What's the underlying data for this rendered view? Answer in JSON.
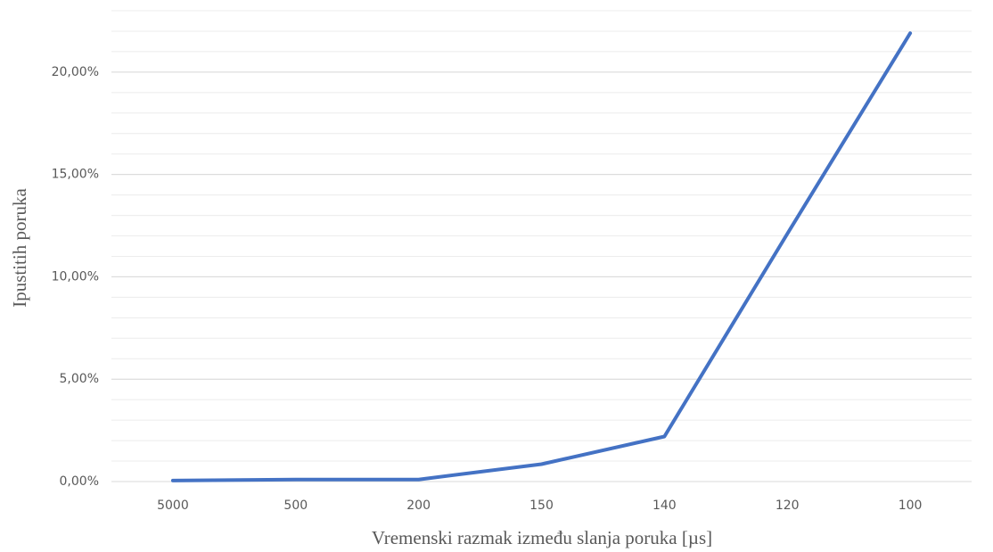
{
  "chart_data": {
    "type": "line",
    "x_label": "Vremenski razmak između slanja poruka [µs]",
    "y_label": "Ipustitih poruka",
    "categories": [
      "5000",
      "500",
      "200",
      "150",
      "140",
      "120",
      "100"
    ],
    "series": [
      {
        "color": "#4472c4",
        "values": [
          0.05,
          0.1,
          0.1,
          0.85,
          2.2,
          12.1,
          21.9
        ]
      }
    ],
    "ylim": [
      0,
      23
    ],
    "yticks": [
      {
        "value": 0,
        "label": "0,00%"
      },
      {
        "value": 5,
        "label": "5,00%"
      },
      {
        "value": 10,
        "label": "10,00%"
      },
      {
        "value": 15,
        "label": "15,00%"
      },
      {
        "value": 20,
        "label": "20,00%"
      }
    ],
    "minor_grid_step": 1,
    "grid": true
  }
}
